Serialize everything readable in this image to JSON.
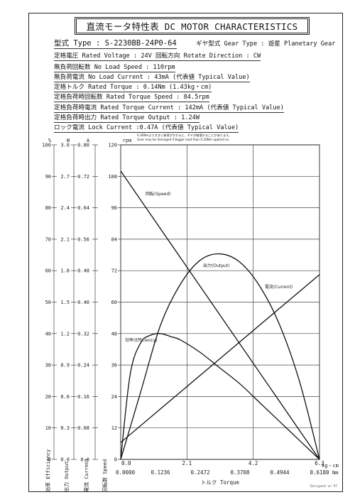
{
  "title": "直流モータ特性表 DC MOTOR CHARACTERISTICS",
  "specs": {
    "model": "型式 Type : S-2230BB-24P0-64",
    "gear": "ギヤ型式 Gear Type : 遊星  Planetary Gear",
    "rated_voltage": "定格電圧 Rated Voltage : 24V   回転方向 Rotate Direction : CW",
    "no_load_speed": "無負荷回転数 No Load Speed : 110rpm",
    "no_load_current": "無負荷電流 No Load Current : 43mA (代表値 Typical Value)",
    "rated_torque": "定格トルク Rated Torque : 0.14Nm (1.43kg・cm)",
    "rated_torque_speed": "定格負荷時回転数 Rated Torque Speed : 84.5rpm",
    "rated_torque_current": "定格負荷時電流 Rated Torque Current : 142mA (代表値 Typical Value)",
    "rated_torque_output": "定格負荷時出力 Rated Torque Output : 1.24W",
    "lock_current": "ロック電流 Lock Current :0.47A (代表値 Typical Value)"
  },
  "warning_note": {
    "jp": "0.30Nmより大きい負荷がかかると、ギヤが破損することがあります。",
    "en": "Gear may be damaged if bigger load than 0.30Nm applied on."
  },
  "signature": "Designed on 97",
  "chart_data": {
    "type": "line",
    "x_axis": {
      "label": "トルク Torque",
      "upper_unit": "kg・cm",
      "lower_unit": "Nm",
      "upper_ticks": [
        "0.0",
        "2.1",
        "4.2",
        "6.3"
      ],
      "lower_ticks": [
        "0.0000",
        "0.1236",
        "0.2472",
        "0.3708",
        "0.4944",
        "0.6180"
      ],
      "range_kgcm": [
        0,
        6.3
      ],
      "grid": true
    },
    "y_axes": [
      {
        "name": "Efficiency",
        "label": "効率 Efficiency",
        "unit": "%",
        "range": [
          0,
          100
        ],
        "ticks": [
          "0",
          "10",
          "20",
          "30",
          "40",
          "50",
          "60",
          "70",
          "80",
          "90",
          "100"
        ]
      },
      {
        "name": "Output",
        "label": "出力 Output",
        "unit": "W",
        "range": [
          0,
          3.0
        ],
        "ticks": [
          "0.0",
          "0.3",
          "0.6",
          "0.9",
          "1.2",
          "1.5",
          "1.8",
          "2.1",
          "2.4",
          "2.7",
          "3.0"
        ]
      },
      {
        "name": "Current",
        "label": "電流 Current",
        "unit": "A",
        "range": [
          0,
          0.8
        ],
        "ticks": [
          "0.0",
          "0.08",
          "0.16",
          "0.24",
          "0.32",
          "0.40",
          "0.48",
          "0.56",
          "0.64",
          "0.72",
          "0.80"
        ]
      },
      {
        "name": "Speed",
        "label": "回転数 Speed",
        "unit": "rpm",
        "range": [
          0,
          120
        ],
        "ticks": [
          "0",
          "12",
          "24",
          "36",
          "48",
          "60",
          "72",
          "84",
          "96",
          "108",
          "120"
        ]
      }
    ],
    "series": [
      {
        "name": "回転(Speed)",
        "axis": "Speed",
        "x": [
          0,
          6.3
        ],
        "y": [
          110,
          0
        ]
      },
      {
        "name": "電流(Current)",
        "axis": "Current",
        "x": [
          0,
          6.3
        ],
        "y": [
          0.043,
          0.47
        ]
      },
      {
        "name": "出力(Output)",
        "axis": "Output",
        "x": [
          0,
          0.63,
          1.26,
          1.89,
          2.52,
          3.15,
          3.78,
          4.41,
          5.04,
          5.67,
          6.3
        ],
        "y": [
          0,
          0.64,
          1.28,
          1.67,
          1.9,
          1.96,
          1.88,
          1.65,
          1.28,
          0.74,
          0
        ]
      },
      {
        "name": "効率(Efficiency)",
        "axis": "Efficiency",
        "x": [
          0,
          0.3,
          0.63,
          0.95,
          1.26,
          1.6,
          1.89,
          2.52,
          3.15,
          3.78,
          4.41,
          5.04,
          5.67,
          6.3
        ],
        "y": [
          0,
          27,
          37,
          39.5,
          40,
          39,
          38,
          34,
          29,
          24,
          18,
          12,
          6,
          0
        ]
      }
    ],
    "legend": "inline labels"
  }
}
